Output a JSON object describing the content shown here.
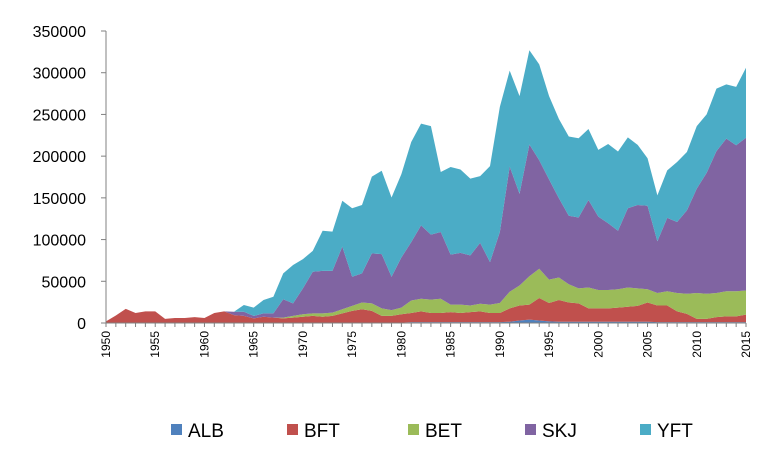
{
  "chart_data": {
    "type": "area",
    "stacked": true,
    "title": "",
    "xlabel": "",
    "ylabel": "",
    "ylim": [
      0,
      350000
    ],
    "yticks": [
      0,
      50000,
      100000,
      150000,
      200000,
      250000,
      300000,
      350000
    ],
    "ytick_labels": [
      "0",
      "50000",
      "100000",
      "150000",
      "200000",
      "250000",
      "300000",
      "350000"
    ],
    "xtick_labels": [
      "1950",
      "1955",
      "1960",
      "1965",
      "1970",
      "1975",
      "1980",
      "1985",
      "1990",
      "1995",
      "2000",
      "2005",
      "2010",
      "2015"
    ],
    "x": [
      1950,
      1951,
      1952,
      1953,
      1954,
      1955,
      1956,
      1957,
      1958,
      1959,
      1960,
      1961,
      1962,
      1963,
      1964,
      1965,
      1966,
      1967,
      1968,
      1969,
      1970,
      1971,
      1972,
      1973,
      1974,
      1975,
      1976,
      1977,
      1978,
      1979,
      1980,
      1981,
      1982,
      1983,
      1984,
      1985,
      1986,
      1987,
      1988,
      1989,
      1990,
      1991,
      1992,
      1993,
      1994,
      1995,
      1996,
      1997,
      1998,
      1999,
      2000,
      2001,
      2002,
      2003,
      2004,
      2005,
      2006,
      2007,
      2008,
      2009,
      2010,
      2011,
      2012,
      2013,
      2014,
      2015
    ],
    "legend_position": "bottom",
    "series": [
      {
        "name": "ALB",
        "color": "#4f81bd",
        "values": [
          0,
          0,
          0,
          0,
          0,
          0,
          0,
          0,
          0,
          0,
          0,
          0,
          0,
          500,
          500,
          500,
          500,
          500,
          500,
          500,
          500,
          500,
          500,
          500,
          500,
          500,
          500,
          500,
          500,
          500,
          500,
          1000,
          1000,
          1000,
          1000,
          1000,
          1000,
          1000,
          1000,
          1000,
          1000,
          1500,
          3000,
          4000,
          3000,
          2000,
          1500,
          1500,
          1500,
          1500,
          1500,
          1500,
          1500,
          1500,
          1500,
          1500,
          1000,
          1000,
          1000,
          1000,
          1000,
          1000,
          1000,
          1000,
          1000,
          1000
        ]
      },
      {
        "name": "BFT",
        "color": "#c0504d",
        "values": [
          2000,
          9000,
          17000,
          12000,
          14000,
          14000,
          5000,
          6000,
          6000,
          7000,
          6000,
          12000,
          14000,
          9000,
          8000,
          5000,
          7000,
          6000,
          5000,
          6000,
          7000,
          8000,
          7000,
          8000,
          11000,
          14000,
          16000,
          14000,
          8000,
          8000,
          10000,
          11000,
          13000,
          11000,
          11000,
          12000,
          11000,
          12000,
          13000,
          11000,
          11000,
          16000,
          18000,
          18000,
          27000,
          22000,
          26000,
          23000,
          22000,
          16000,
          16000,
          16000,
          17000,
          18000,
          19000,
          23000,
          20000,
          20000,
          13000,
          10000,
          4000,
          4000,
          6000,
          7000,
          7000,
          9000
        ]
      },
      {
        "name": "BET",
        "color": "#9bbb59",
        "values": [
          0,
          0,
          0,
          0,
          0,
          0,
          0,
          0,
          0,
          0,
          0,
          0,
          0,
          0,
          0,
          0,
          0,
          0,
          1000,
          2000,
          3000,
          3000,
          4000,
          4000,
          5000,
          6000,
          8000,
          9000,
          9000,
          7000,
          8000,
          15000,
          15000,
          16000,
          17000,
          9000,
          10000,
          8000,
          9000,
          10000,
          12000,
          20000,
          24000,
          34000,
          35000,
          28000,
          27000,
          22000,
          18000,
          25000,
          22000,
          22000,
          22000,
          23000,
          21000,
          16000,
          15000,
          17000,
          22000,
          24000,
          31000,
          30000,
          29000,
          30000,
          30000,
          29000
        ]
      },
      {
        "name": "SKJ",
        "color": "#8064a2",
        "values": [
          0,
          0,
          0,
          0,
          0,
          0,
          0,
          0,
          0,
          0,
          0,
          0,
          0,
          4000,
          5000,
          3000,
          4000,
          5000,
          22000,
          15000,
          31000,
          50000,
          51000,
          50000,
          75000,
          35000,
          35000,
          60000,
          65000,
          40000,
          60000,
          70000,
          88000,
          78000,
          80000,
          60000,
          62000,
          60000,
          73000,
          51000,
          85000,
          150000,
          110000,
          158000,
          130000,
          120000,
          95000,
          82000,
          85000,
          105000,
          88000,
          80000,
          70000,
          95000,
          100000,
          100000,
          62000,
          88000,
          85000,
          100000,
          125000,
          145000,
          170000,
          183000,
          175000,
          183000
        ]
      },
      {
        "name": "YFT",
        "color": "#4bacc6",
        "values": [
          0,
          0,
          0,
          0,
          0,
          0,
          0,
          0,
          0,
          0,
          0,
          0,
          0,
          0,
          8000,
          10000,
          16000,
          20000,
          31000,
          46000,
          35000,
          25000,
          48000,
          47000,
          55000,
          82000,
          82000,
          92000,
          100000,
          95000,
          100000,
          120000,
          122000,
          130000,
          72000,
          105000,
          100000,
          92000,
          80000,
          115000,
          150000,
          115000,
          117000,
          113000,
          115000,
          100000,
          95000,
          95000,
          95000,
          85000,
          80000,
          95000,
          95000,
          85000,
          72000,
          57000,
          55000,
          57000,
          72000,
          70000,
          75000,
          70000,
          75000,
          65000,
          70000,
          84000
        ]
      }
    ]
  }
}
